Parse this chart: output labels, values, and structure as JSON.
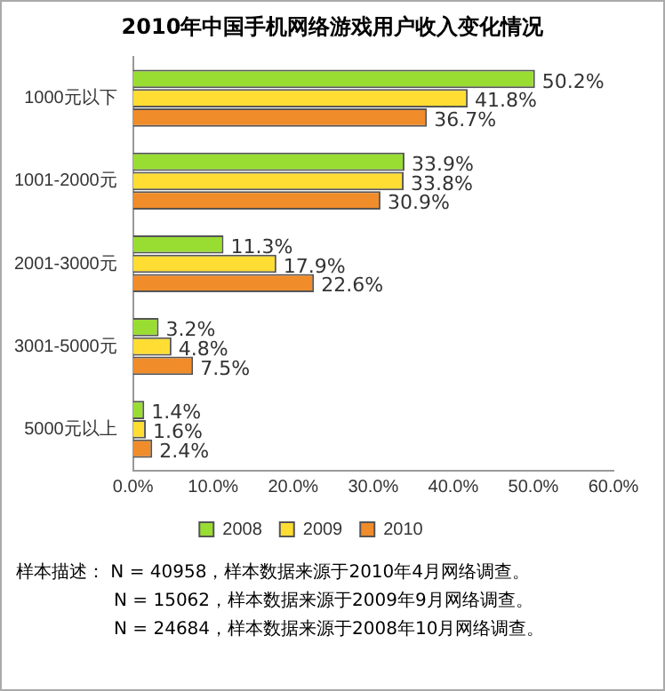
{
  "chart_data": {
    "type": "bar",
    "orientation": "horizontal",
    "title": "2010年中国手机网络游戏用户收入变化情况",
    "categories": [
      "1000元以下",
      "1001-2000元",
      "2001-3000元",
      "3001-5000元",
      "5000元以上"
    ],
    "series": [
      {
        "name": "2008",
        "color": "#99dd33",
        "values": [
          50.2,
          33.9,
          11.3,
          3.2,
          1.4
        ],
        "value_labels": [
          "50.2%",
          "33.9%",
          "11.3%",
          "3.2%",
          "1.4%"
        ]
      },
      {
        "name": "2009",
        "color": "#ffdd33",
        "values": [
          41.8,
          33.8,
          17.9,
          4.8,
          1.6
        ],
        "value_labels": [
          "41.8%",
          "33.8%",
          "17.9%",
          "4.8%",
          "1.6%"
        ]
      },
      {
        "name": "2010",
        "color": "#f08c2a",
        "values": [
          36.7,
          30.9,
          22.6,
          7.5,
          2.4
        ],
        "value_labels": [
          "36.7%",
          "30.9%",
          "22.6%",
          "7.5%",
          "2.4%"
        ]
      }
    ],
    "xlim": [
      0,
      60
    ],
    "xticks": [
      {
        "value": 0,
        "label": "0.0%"
      },
      {
        "value": 10,
        "label": "10.0%"
      },
      {
        "value": 20,
        "label": "20.0%"
      },
      {
        "value": 30,
        "label": "30.0%"
      },
      {
        "value": 40,
        "label": "40.0%"
      },
      {
        "value": 50,
        "label": "50.0%"
      },
      {
        "value": 60,
        "label": "60.0%"
      }
    ],
    "grid": false,
    "legend": "bottom",
    "annotations": [
      "样本描述：  N = 40958，样本数据来源于2010年4月网络调查。",
      "N = 15062，样本数据来源于2009年9月网络调查。",
      "N = 24684，样本数据来源于2008年10月网络调查。"
    ]
  }
}
